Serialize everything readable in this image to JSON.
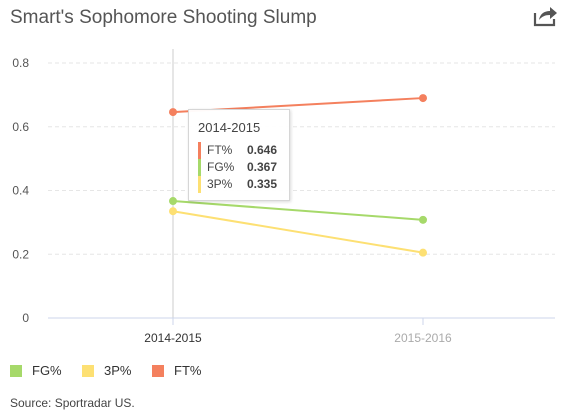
{
  "header": {
    "title": "Smart's Sophomore Shooting Slump",
    "share_icon": "share-arrow-icon"
  },
  "chart_data": {
    "type": "line",
    "title": "Smart's Sophomore Shooting Slump",
    "xlabel": "",
    "ylabel": "",
    "categories": [
      "2014-2015",
      "2015-2016"
    ],
    "ylim": [
      0,
      0.8
    ],
    "yticks": [
      0,
      0.2,
      0.4,
      0.6,
      0.8
    ],
    "ytick_labels": [
      "0",
      "0.2",
      "0.4",
      "0.6",
      "0.8"
    ],
    "grid": true,
    "legend_position": "bottom-left",
    "series": [
      {
        "name": "FG%",
        "values": [
          0.367,
          0.308
        ],
        "color": "#a6d96a"
      },
      {
        "name": "3P%",
        "values": [
          0.335,
          0.205
        ],
        "color": "#fde073"
      },
      {
        "name": "FT%",
        "values": [
          0.646,
          0.69
        ],
        "color": "#f4805e"
      }
    ],
    "hovered_category_index": 0
  },
  "tooltip": {
    "title": "2014-2015",
    "rows": [
      {
        "name": "FT%",
        "value": "0.646",
        "color": "#f4805e"
      },
      {
        "name": "FG%",
        "value": "0.367",
        "color": "#a6d96a"
      },
      {
        "name": "3P%",
        "value": "0.335",
        "color": "#fde073"
      }
    ]
  },
  "legend": {
    "items": [
      {
        "label": "FG%",
        "color": "#a6d96a"
      },
      {
        "label": "3P%",
        "color": "#fde073"
      },
      {
        "label": "FT%",
        "color": "#f4805e"
      }
    ]
  },
  "footer": {
    "source": "Source: Sportradar US."
  },
  "colors": {
    "axis_active": "#333333",
    "axis_inactive": "#aaaaaa",
    "gridline": "#e6e6e6",
    "crosshair": "#cccccc"
  }
}
